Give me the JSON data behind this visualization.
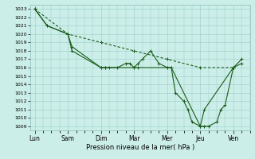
{
  "background_color": "#cceee8",
  "grid_color": "#99cccc",
  "line_color": "#1a5c1a",
  "xlabel": "Pression niveau de la mer( hPa )",
  "ylim": [
    1008.5,
    1023.5
  ],
  "yticks": [
    1009,
    1010,
    1011,
    1012,
    1013,
    1014,
    1015,
    1016,
    1017,
    1018,
    1019,
    1020,
    1021,
    1022,
    1023
  ],
  "xtick_labels": [
    "Lun",
    "Sam",
    "Dim",
    "Mar",
    "Mer",
    "Jeu",
    "Ven"
  ],
  "xtick_positions": [
    0,
    16,
    32,
    48,
    64,
    80,
    96
  ],
  "xlim": [
    -2,
    104
  ],
  "series_main": {
    "x": [
      0,
      6,
      16,
      18,
      32,
      34,
      36,
      40,
      44,
      46,
      48,
      50,
      52,
      56,
      60,
      64,
      66,
      68,
      72,
      74,
      76,
      80,
      82,
      84,
      88,
      90,
      92,
      96,
      100
    ],
    "y": [
      1023,
      1021,
      1020,
      1018,
      1016,
      1016,
      1016,
      1016,
      1016.5,
      1016.5,
      1016,
      1016.5,
      1017,
      1018,
      1016.5,
      1016,
      1016,
      1013,
      1012,
      1011,
      1009.5,
      1009,
      1009,
      1009,
      1009.5,
      1011,
      1011.5,
      1016,
      1017
    ]
  },
  "series_smooth": {
    "x": [
      0,
      6,
      16,
      18,
      32,
      34,
      48,
      50,
      64,
      66,
      80,
      82,
      96,
      100
    ],
    "y": [
      1023,
      1021,
      1020,
      1018.5,
      1016,
      1016,
      1016,
      1016,
      1016,
      1016,
      1009,
      1011,
      1016,
      1016.5
    ]
  },
  "series_dashed": {
    "x": [
      0,
      16,
      32,
      48,
      64,
      80,
      96
    ],
    "y": [
      1023,
      1020,
      1019,
      1018,
      1017,
      1016,
      1016
    ]
  }
}
